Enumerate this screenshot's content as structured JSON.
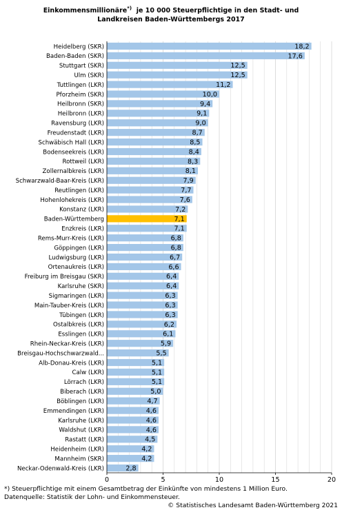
{
  "chart_data": {
    "type": "bar",
    "orientation": "horizontal",
    "title_line1": "Einkommensmillionäre",
    "title_sup": "*)",
    "title_line1_rest": "je 10 000 Steuerpflichtige in den Stadt- und",
    "title_line2": "Landkreisen Baden-Württembergs 2017",
    "categories": [
      "Heidelberg (SKR)",
      "Baden-Baden (SKR)",
      "Stuttgart (SKR)",
      "Ulm (SKR)",
      "Tuttlingen (LKR)",
      "Pforzheim (SKR)",
      "Heilbronn (SKR)",
      "Heilbronn (LKR)",
      "Ravensburg (LKR)",
      "Freudenstadt (LKR)",
      "Schwäbisch Hall (LKR)",
      "Bodenseekreis (LKR)",
      "Rottweil (LKR)",
      "Zollernalbkreis (LKR)",
      "Schwarzwald-Baar-Kreis (LKR)",
      "Reutlingen (LKR)",
      "Hohenlohekreis (LKR)",
      "Konstanz (LKR)",
      "Baden-Württemberg",
      "Enzkreis (LKR)",
      "Rems-Murr-Kreis (LKR)",
      "Göppingen (LKR)",
      "Ludwigsburg (LKR)",
      "Ortenaukreis (LKR)",
      "Freiburg im Breisgau (SKR)",
      "Karlsruhe (SKR)",
      "Sigmaringen (LKR)",
      "Main-Tauber-Kreis (LKR)",
      "Tübingen (LKR)",
      "Ostalbkreis (LKR)",
      "Esslingen (LKR)",
      "Rhein-Neckar-Kreis (LKR)",
      "Breisgau-Hochschwarzwald...",
      "Alb-Donau-Kreis (LKR)",
      "Calw (LKR)",
      "Lörrach (LKR)",
      "Biberach (LKR)",
      "Böblingen (LKR)",
      "Emmendingen (LKR)",
      "Karlsruhe (LKR)",
      "Waldshut (LKR)",
      "Rastatt (LKR)",
      "Heidenheim (LKR)",
      "Mannheim (SKR)",
      "Neckar-Odenwald-Kreis (LKR)"
    ],
    "values": [
      18.2,
      17.6,
      12.5,
      12.5,
      11.2,
      10.0,
      9.4,
      9.1,
      9.0,
      8.7,
      8.5,
      8.4,
      8.3,
      8.1,
      7.9,
      7.7,
      7.6,
      7.2,
      7.1,
      7.1,
      6.8,
      6.8,
      6.7,
      6.6,
      6.4,
      6.4,
      6.3,
      6.3,
      6.3,
      6.2,
      6.1,
      5.9,
      5.5,
      5.1,
      5.1,
      5.1,
      5.0,
      4.7,
      4.6,
      4.6,
      4.6,
      4.5,
      4.2,
      4.2,
      2.8
    ],
    "value_labels": [
      "18,2",
      "17,6",
      "12,5",
      "12,5",
      "11,2",
      "10,0",
      "9,4",
      "9,1",
      "9,0",
      "8,7",
      "8,5",
      "8,4",
      "8,3",
      "8,1",
      "7,9",
      "7,7",
      "7,6",
      "7,2",
      "7,1",
      "7,1",
      "6,8",
      "6,8",
      "6,7",
      "6,6",
      "6,4",
      "6,4",
      "6,3",
      "6,3",
      "6,3",
      "6,2",
      "6,1",
      "5,9",
      "5,5",
      "5,1",
      "5,1",
      "5,1",
      "5,0",
      "4,7",
      "4,6",
      "4,6",
      "4,6",
      "4,5",
      "4,2",
      "4,2",
      "2,8"
    ],
    "highlight_category": "Baden-Württemberg",
    "xlim": [
      0,
      20
    ],
    "x_ticks": [
      0,
      5,
      10,
      15,
      20
    ],
    "grid": true,
    "colors": {
      "bar": "#a3c6e8",
      "highlight": "#ffc000",
      "grid": "#d9d9d9",
      "axis": "#000000"
    }
  },
  "footnote": "*) Steuerpflichtige mit einem Gesamtbetrag der Einkünfte von mindestens 1 Million Euro.",
  "source": "Datenquelle: Statistik der Lohn- und Einkommensteuer.",
  "copyright": "© Statistisches Landesamt Baden-Württemberg 2021"
}
